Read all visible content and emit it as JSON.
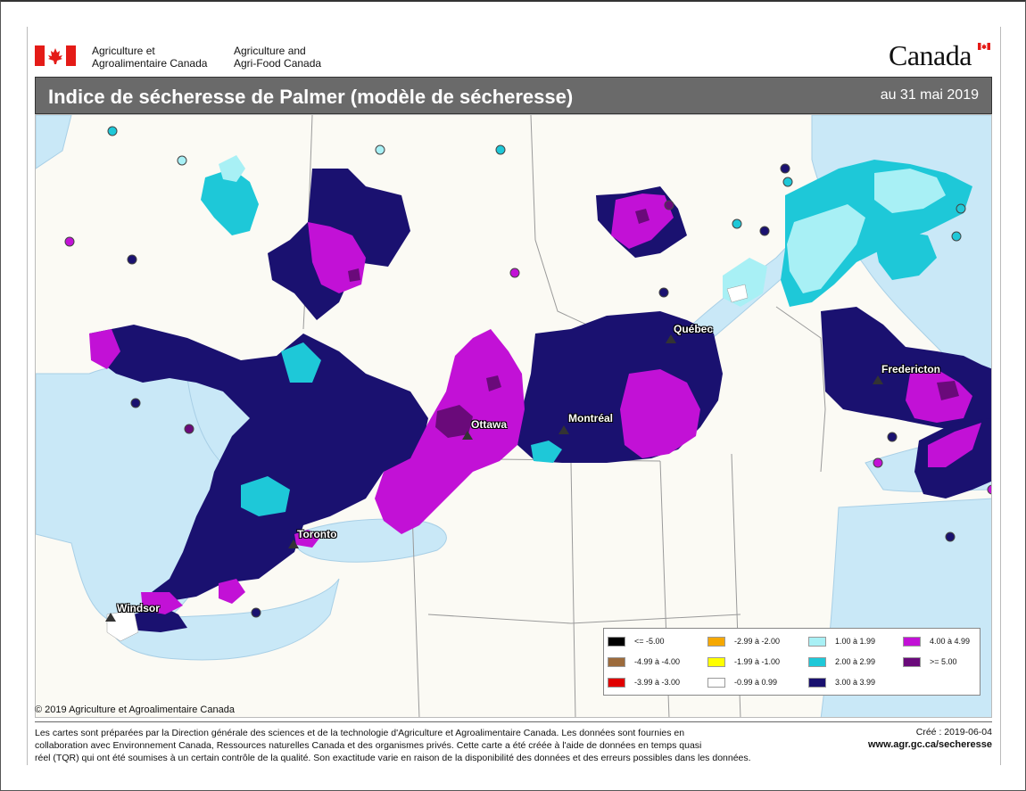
{
  "header": {
    "dept_fr_line1": "Agriculture et",
    "dept_fr_line2": "Agroalimentaire Canada",
    "dept_en_line1": "Agriculture and",
    "dept_en_line2": "Agri-Food Canada",
    "wordmark": "Canada",
    "title": "Indice de sécheresse de Palmer (modèle de sécheresse)",
    "date": "au 31 mai 2019"
  },
  "map": {
    "cities": [
      "Québec",
      "Fredericton",
      "Montréal",
      "Ottawa",
      "Toronto",
      "Windsor"
    ]
  },
  "legend": {
    "items": [
      {
        "label": "<= -5.00",
        "color": "#000000"
      },
      {
        "label": "-4.99 à -4.00",
        "color": "#9c6b3c"
      },
      {
        "label": "-3.99 à -3.00",
        "color": "#e00000"
      },
      {
        "label": "-2.99 à -2.00",
        "color": "#f5a800"
      },
      {
        "label": "-1.99 à -1.00",
        "color": "#ffff00"
      },
      {
        "label": "-0.99 à 0.99",
        "color": "#ffffff"
      },
      {
        "label": "1.00 à 1.99",
        "color": "#a8f0f5"
      },
      {
        "label": "2.00 à 2.99",
        "color": "#1ec8d8"
      },
      {
        "label": "3.00 à 3.99",
        "color": "#1a1170"
      },
      {
        "label": "4.00 à 4.99",
        "color": "#c211d6"
      },
      {
        "label": ">= 5.00",
        "color": "#6a0a7a"
      }
    ]
  },
  "footer": {
    "copyright": "© 2019 Agriculture et Agroalimentaire Canada",
    "text_line1": "Les cartes sont préparées par la Direction générale des sciences et de la technologie d'Agriculture et Agroalimentaire Canada. Les données sont fournies en",
    "text_line2": "collaboration avec Environnement Canada, Ressources naturelles Canada et des organismes privés. Cette carte a été créée à l'aide de données en temps quasi",
    "text_line3": "réel (TQR) qui ont été soumises à un certain contrôle de la qualité. Son exactitude varie en raison de la disponibilité des données et des erreurs possibles dans les données.",
    "created": "Créé : 2019-06-04",
    "website": "www.agr.gc.ca/secheresse"
  }
}
